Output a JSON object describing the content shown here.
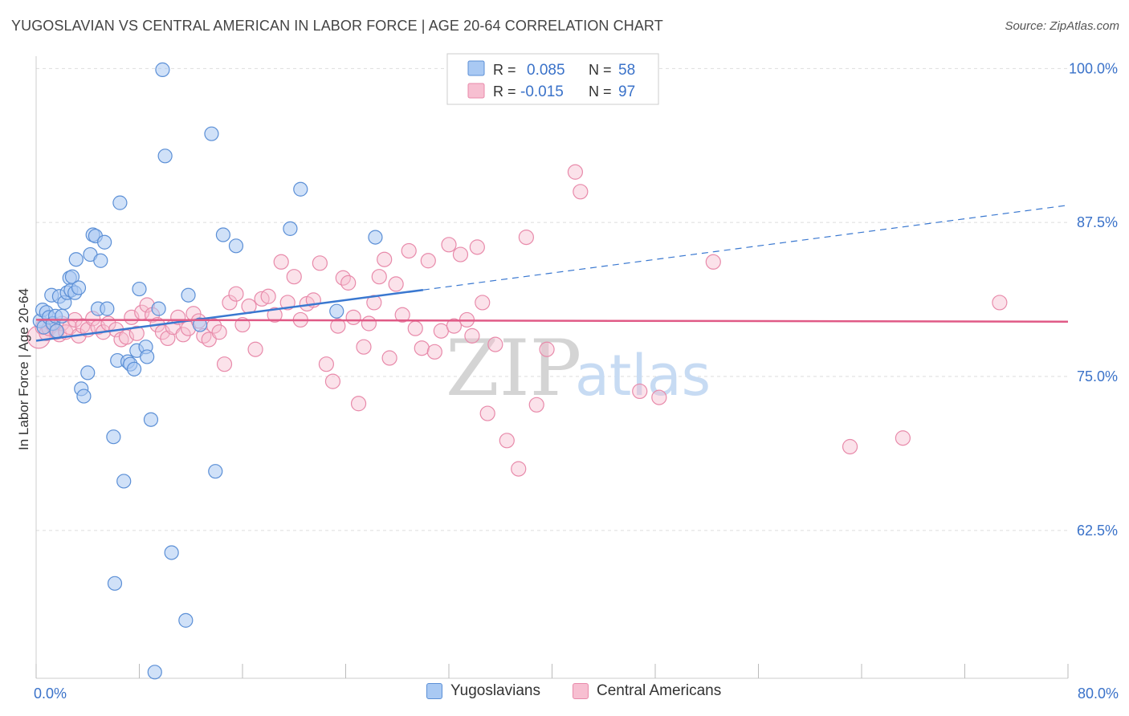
{
  "title": "YUGOSLAVIAN VS CENTRAL AMERICAN IN LABOR FORCE | AGE 20-64 CORRELATION CHART",
  "source": "Source: ZipAtlas.com",
  "watermark": {
    "zip": "ZIP",
    "atlas": "atlas"
  },
  "colors": {
    "blue_fill": "#a9c9f3",
    "blue_stroke": "#5b8fd6",
    "blue_line": "#3a78d0",
    "pink_fill": "#f7bfd1",
    "pink_stroke": "#e88aaa",
    "pink_line": "#e05a86",
    "axis_label": "#3a72c9",
    "grid": "#dddddd"
  },
  "legend_top": {
    "rows": [
      {
        "r_label": "R =",
        "r_value": "0.085",
        "n_label": "N =",
        "n_value": "58"
      },
      {
        "r_label": "R =",
        "r_value": "-0.015",
        "n_label": "N =",
        "n_value": "97"
      }
    ]
  },
  "legend_bottom": [
    "Yugoslavians",
    "Central Americans"
  ],
  "chart_data": {
    "type": "scatter",
    "title": "YUGOSLAVIAN VS CENTRAL AMERICAN IN LABOR FORCE | AGE 20-64 CORRELATION CHART",
    "xlabel": "",
    "ylabel": "In Labor Force | Age 20-64",
    "xlim": [
      0,
      80
    ],
    "ylim": [
      50.5,
      101
    ],
    "x_tick_labels": [
      "0.0%",
      "80.0%"
    ],
    "y_ticks": [
      100,
      87.5,
      75,
      62.5
    ],
    "y_tick_labels": [
      "100.0%",
      "87.5%",
      "75.0%",
      "62.5%"
    ],
    "grid": true,
    "series": [
      {
        "name": "Yugoslavians",
        "points": [
          [
            0.3,
            79.5
          ],
          [
            0.5,
            80.4
          ],
          [
            0.6,
            79.0
          ],
          [
            0.8,
            80.2
          ],
          [
            1.0,
            79.8
          ],
          [
            1.2,
            81.6
          ],
          [
            1.3,
            79.3
          ],
          [
            1.5,
            79.9
          ],
          [
            1.6,
            78.7
          ],
          [
            1.8,
            81.5
          ],
          [
            2.0,
            79.9
          ],
          [
            2.2,
            81.0
          ],
          [
            2.4,
            81.8
          ],
          [
            2.6,
            83.0
          ],
          [
            2.7,
            82.0
          ],
          [
            2.8,
            83.1
          ],
          [
            3.0,
            81.8
          ],
          [
            3.1,
            84.5
          ],
          [
            3.3,
            82.2
          ],
          [
            3.5,
            74.0
          ],
          [
            3.7,
            73.4
          ],
          [
            4.0,
            75.3
          ],
          [
            4.2,
            84.9
          ],
          [
            4.4,
            86.5
          ],
          [
            4.6,
            86.4
          ],
          [
            4.8,
            80.5
          ],
          [
            5.0,
            84.4
          ],
          [
            5.3,
            85.9
          ],
          [
            5.5,
            80.5
          ],
          [
            6.0,
            70.1
          ],
          [
            6.1,
            58.2
          ],
          [
            6.3,
            76.3
          ],
          [
            6.5,
            89.1
          ],
          [
            6.8,
            66.5
          ],
          [
            7.1,
            76.2
          ],
          [
            7.3,
            76.0
          ],
          [
            7.6,
            75.6
          ],
          [
            7.8,
            77.1
          ],
          [
            8.0,
            82.1
          ],
          [
            8.5,
            77.4
          ],
          [
            8.6,
            76.6
          ],
          [
            8.9,
            71.5
          ],
          [
            9.2,
            51.0
          ],
          [
            9.5,
            80.5
          ],
          [
            9.8,
            99.9
          ],
          [
            10.0,
            92.9
          ],
          [
            10.5,
            60.7
          ],
          [
            11.6,
            55.2
          ],
          [
            11.8,
            81.6
          ],
          [
            12.7,
            79.2
          ],
          [
            13.6,
            94.7
          ],
          [
            13.9,
            67.3
          ],
          [
            14.5,
            86.5
          ],
          [
            15.5,
            85.6
          ],
          [
            19.7,
            87.0
          ],
          [
            20.5,
            90.2
          ],
          [
            23.3,
            80.3
          ],
          [
            26.3,
            86.3
          ]
        ]
      },
      {
        "name": "Central Americans",
        "points": [
          [
            0.2,
            78.2
          ],
          [
            0.5,
            79.0
          ],
          [
            0.8,
            78.5
          ],
          [
            1.0,
            78.9
          ],
          [
            1.3,
            79.2
          ],
          [
            1.6,
            78.6
          ],
          [
            1.8,
            78.4
          ],
          [
            2.0,
            79.3
          ],
          [
            2.3,
            78.6
          ],
          [
            2.6,
            79.0
          ],
          [
            3.0,
            79.6
          ],
          [
            3.3,
            78.3
          ],
          [
            3.6,
            79.1
          ],
          [
            4.0,
            78.8
          ],
          [
            4.4,
            79.7
          ],
          [
            4.8,
            79.0
          ],
          [
            5.2,
            78.6
          ],
          [
            5.6,
            79.3
          ],
          [
            6.2,
            78.8
          ],
          [
            6.6,
            78.0
          ],
          [
            7.0,
            78.2
          ],
          [
            7.4,
            79.8
          ],
          [
            7.8,
            78.5
          ],
          [
            8.2,
            80.2
          ],
          [
            8.6,
            80.8
          ],
          [
            9.0,
            80.0
          ],
          [
            9.4,
            79.2
          ],
          [
            9.8,
            78.6
          ],
          [
            10.2,
            78.1
          ],
          [
            10.6,
            79.0
          ],
          [
            11.0,
            79.8
          ],
          [
            11.4,
            78.4
          ],
          [
            11.8,
            78.9
          ],
          [
            12.2,
            80.1
          ],
          [
            12.6,
            79.5
          ],
          [
            13.0,
            78.3
          ],
          [
            13.4,
            78.0
          ],
          [
            13.8,
            79.1
          ],
          [
            14.2,
            78.6
          ],
          [
            14.6,
            76.0
          ],
          [
            15.0,
            81.0
          ],
          [
            15.5,
            81.7
          ],
          [
            16.0,
            79.2
          ],
          [
            16.5,
            80.7
          ],
          [
            17.0,
            77.2
          ],
          [
            17.5,
            81.3
          ],
          [
            18.0,
            81.5
          ],
          [
            18.5,
            80.0
          ],
          [
            19.0,
            84.3
          ],
          [
            19.5,
            81.0
          ],
          [
            20.0,
            83.1
          ],
          [
            20.5,
            79.6
          ],
          [
            21.0,
            80.9
          ],
          [
            21.5,
            81.2
          ],
          [
            22.0,
            84.2
          ],
          [
            22.5,
            76.0
          ],
          [
            23.0,
            74.6
          ],
          [
            23.4,
            79.1
          ],
          [
            23.8,
            83.0
          ],
          [
            24.2,
            82.6
          ],
          [
            24.6,
            79.8
          ],
          [
            25.0,
            72.8
          ],
          [
            25.4,
            77.4
          ],
          [
            25.8,
            79.3
          ],
          [
            26.2,
            81.0
          ],
          [
            26.6,
            83.1
          ],
          [
            27.0,
            84.5
          ],
          [
            27.4,
            76.5
          ],
          [
            27.9,
            82.5
          ],
          [
            28.4,
            80.0
          ],
          [
            28.9,
            85.2
          ],
          [
            29.4,
            78.9
          ],
          [
            29.9,
            77.3
          ],
          [
            30.4,
            84.4
          ],
          [
            30.9,
            77.0
          ],
          [
            31.4,
            78.7
          ],
          [
            32.0,
            85.7
          ],
          [
            32.4,
            79.1
          ],
          [
            32.9,
            84.9
          ],
          [
            33.4,
            79.6
          ],
          [
            33.8,
            78.3
          ],
          [
            34.2,
            85.5
          ],
          [
            34.6,
            81.0
          ],
          [
            35.0,
            72.0
          ],
          [
            35.6,
            77.6
          ],
          [
            36.5,
            69.8
          ],
          [
            37.4,
            67.5
          ],
          [
            38.0,
            86.3
          ],
          [
            38.8,
            72.7
          ],
          [
            39.6,
            77.2
          ],
          [
            41.8,
            91.6
          ],
          [
            42.2,
            90.0
          ],
          [
            46.8,
            73.8
          ],
          [
            48.3,
            73.3
          ],
          [
            52.5,
            84.3
          ],
          [
            63.1,
            69.3
          ],
          [
            67.2,
            70.0
          ],
          [
            74.7,
            81.0
          ]
        ]
      }
    ],
    "trend_lines": [
      {
        "series": "Yugoslavians",
        "x_start": 0,
        "y_start": 77.9,
        "x_solid_end": 30,
        "x_end": 80,
        "y_end": 88.9
      },
      {
        "series": "Central Americans",
        "x_start": 0,
        "y_start": 79.6,
        "x_end": 80,
        "y_end": 79.45
      }
    ]
  }
}
